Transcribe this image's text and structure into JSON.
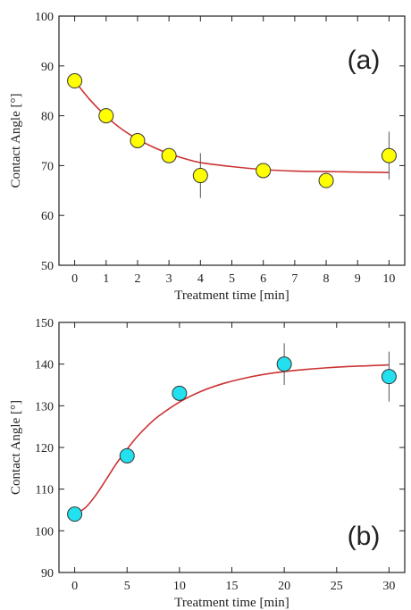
{
  "chart_data": [
    {
      "type": "scatter",
      "tag": "(a)",
      "xlabel": "Treatment time [min]",
      "ylabel": "Contact Angle [°]",
      "xlim": [
        -0.5,
        10.5
      ],
      "ylim": [
        50,
        100
      ],
      "xticks": [
        0,
        1,
        2,
        3,
        4,
        5,
        6,
        7,
        8,
        9,
        10
      ],
      "yticks": [
        50,
        60,
        70,
        80,
        90,
        100
      ],
      "xtick_labels": [
        "0",
        "1",
        "2",
        "3",
        "4",
        "5",
        "6",
        "7",
        "8",
        "9",
        "10"
      ],
      "ytick_labels": [
        "50",
        "60",
        "70",
        "80",
        "90",
        "100"
      ],
      "grid": false,
      "marker_color": "#ffff00",
      "fit_color": "#cc3333",
      "points": [
        {
          "x": 0,
          "y": 87,
          "err": 0
        },
        {
          "x": 1,
          "y": 80,
          "err": 0
        },
        {
          "x": 2,
          "y": 75,
          "err": 0
        },
        {
          "x": 3,
          "y": 72,
          "err": 0
        },
        {
          "x": 4,
          "y": 68,
          "err": 4.5
        },
        {
          "x": 6,
          "y": 69,
          "err": 0
        },
        {
          "x": 8,
          "y": 67,
          "err": 0
        },
        {
          "x": 10,
          "y": 72,
          "err": 4.8
        }
      ],
      "fit": [
        {
          "x": 0,
          "y": 87
        },
        {
          "x": 0.5,
          "y": 83.1
        },
        {
          "x": 1,
          "y": 79.9
        },
        {
          "x": 1.5,
          "y": 77.3
        },
        {
          "x": 2,
          "y": 75.3
        },
        {
          "x": 2.5,
          "y": 73.7
        },
        {
          "x": 3,
          "y": 72.4
        },
        {
          "x": 3.5,
          "y": 71.4
        },
        {
          "x": 4,
          "y": 70.6
        },
        {
          "x": 5,
          "y": 69.8
        },
        {
          "x": 6,
          "y": 69.2
        },
        {
          "x": 7,
          "y": 68.9
        },
        {
          "x": 8,
          "y": 68.8
        },
        {
          "x": 9,
          "y": 68.7
        },
        {
          "x": 10,
          "y": 68.6
        }
      ]
    },
    {
      "type": "scatter",
      "tag": "(b)",
      "xlabel": "Treatment time [min]",
      "ylabel": "Contact Angle [°]",
      "xlim": [
        -1.5,
        31.5
      ],
      "ylim": [
        90,
        150
      ],
      "xticks": [
        0,
        5,
        10,
        15,
        20,
        25,
        30
      ],
      "yticks": [
        90,
        100,
        110,
        120,
        130,
        140,
        150
      ],
      "xtick_labels": [
        "0",
        "5",
        "10",
        "15",
        "20",
        "25",
        "30"
      ],
      "ytick_labels": [
        "90",
        "100",
        "110",
        "120",
        "130",
        "140",
        "150"
      ],
      "grid": false,
      "marker_color": "#22e0ee",
      "fit_color": "#cc3333",
      "points": [
        {
          "x": 0,
          "y": 104,
          "err": 0
        },
        {
          "x": 5,
          "y": 118,
          "err": 0
        },
        {
          "x": 10,
          "y": 133,
          "err": 0
        },
        {
          "x": 20,
          "y": 140,
          "err": 5
        },
        {
          "x": 30,
          "y": 137,
          "err": 6
        }
      ],
      "fit": [
        {
          "x": 0,
          "y": 104
        },
        {
          "x": 1,
          "y": 105.5
        },
        {
          "x": 2,
          "y": 108.5
        },
        {
          "x": 3,
          "y": 112.3
        },
        {
          "x": 4,
          "y": 116.2
        },
        {
          "x": 5,
          "y": 119.6
        },
        {
          "x": 6,
          "y": 122.7
        },
        {
          "x": 7,
          "y": 125.3
        },
        {
          "x": 8,
          "y": 127.5
        },
        {
          "x": 10,
          "y": 130.9
        },
        {
          "x": 12,
          "y": 133.4
        },
        {
          "x": 14,
          "y": 135.2
        },
        {
          "x": 16,
          "y": 136.5
        },
        {
          "x": 18,
          "y": 137.5
        },
        {
          "x": 20,
          "y": 138.2
        },
        {
          "x": 22,
          "y": 138.7
        },
        {
          "x": 24,
          "y": 139.1
        },
        {
          "x": 26,
          "y": 139.4
        },
        {
          "x": 28,
          "y": 139.6
        },
        {
          "x": 30,
          "y": 139.8
        }
      ]
    }
  ]
}
